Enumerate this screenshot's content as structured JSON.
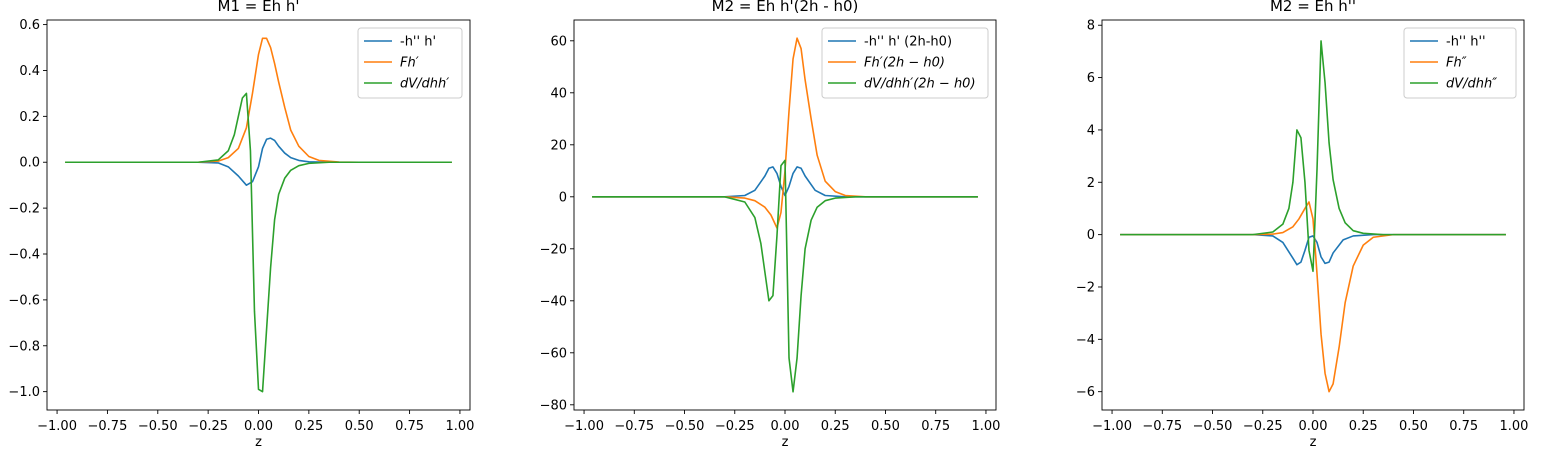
{
  "chart_data": [
    {
      "type": "line",
      "title": "M1 = Eh h'",
      "xlabel": "z",
      "ylabel": "",
      "xlim": [
        -1.05,
        1.05
      ],
      "ylim": [
        -1.08,
        0.62
      ],
      "xticks": [
        -1.0,
        -0.75,
        -0.5,
        -0.25,
        0.0,
        0.25,
        0.5,
        0.75,
        1.0
      ],
      "xtick_labels": [
        "−1.00",
        "−0.75",
        "−0.50",
        "−0.25",
        "0.00",
        "0.25",
        "0.50",
        "0.75",
        "1.00"
      ],
      "yticks": [
        -1.0,
        -0.8,
        -0.6,
        -0.4,
        -0.2,
        0.0,
        0.2,
        0.4,
        0.6
      ],
      "ytick_labels": [
        "−1.0",
        "−0.8",
        "−0.6",
        "−0.4",
        "−0.2",
        "0.0",
        "0.2",
        "0.4",
        "0.6"
      ],
      "legend_position": "top-right",
      "series": [
        {
          "name": "-h'' h'",
          "italic": false,
          "color": "#1f77b4",
          "x": [
            -0.96,
            -0.5,
            -0.3,
            -0.2,
            -0.15,
            -0.1,
            -0.06,
            -0.03,
            0.0,
            0.02,
            0.04,
            0.06,
            0.08,
            0.1,
            0.13,
            0.16,
            0.2,
            0.25,
            0.35,
            0.5,
            0.96
          ],
          "y": [
            0,
            0,
            0,
            -0.003,
            -0.02,
            -0.06,
            -0.1,
            -0.085,
            -0.02,
            0.06,
            0.1,
            0.105,
            0.095,
            0.07,
            0.04,
            0.02,
            0.008,
            0.002,
            0,
            0,
            0
          ]
        },
        {
          "name": "Fh′",
          "italic": true,
          "color": "#ff7f0e",
          "x": [
            -0.96,
            -0.5,
            -0.3,
            -0.2,
            -0.15,
            -0.1,
            -0.06,
            -0.03,
            0.0,
            0.02,
            0.04,
            0.06,
            0.08,
            0.1,
            0.13,
            0.16,
            0.2,
            0.25,
            0.3,
            0.4,
            0.5,
            0.96
          ],
          "y": [
            0,
            0,
            0,
            0.005,
            0.02,
            0.06,
            0.15,
            0.3,
            0.47,
            0.54,
            0.54,
            0.5,
            0.43,
            0.35,
            0.24,
            0.14,
            0.07,
            0.025,
            0.008,
            0.001,
            0,
            0
          ]
        },
        {
          "name": "dV/dhh′",
          "italic": true,
          "color": "#2ca02c",
          "x": [
            -0.96,
            -0.5,
            -0.3,
            -0.2,
            -0.15,
            -0.12,
            -0.1,
            -0.08,
            -0.06,
            -0.04,
            -0.02,
            0.0,
            0.02,
            0.04,
            0.06,
            0.08,
            0.1,
            0.13,
            0.16,
            0.2,
            0.25,
            0.35,
            0.5,
            0.96
          ],
          "y": [
            0,
            0,
            0,
            0.01,
            0.05,
            0.12,
            0.2,
            0.28,
            0.3,
            0.05,
            -0.65,
            -0.99,
            -1.0,
            -0.73,
            -0.46,
            -0.25,
            -0.14,
            -0.07,
            -0.035,
            -0.015,
            -0.005,
            0,
            0,
            0
          ]
        }
      ]
    },
    {
      "type": "line",
      "title": "M2 = Eh h'(2h - h0)",
      "xlabel": "z",
      "ylabel": "",
      "xlim": [
        -1.05,
        1.05
      ],
      "ylim": [
        -82,
        68
      ],
      "xticks": [
        -1.0,
        -0.75,
        -0.5,
        -0.25,
        0.0,
        0.25,
        0.5,
        0.75,
        1.0
      ],
      "xtick_labels": [
        "−1.00",
        "−0.75",
        "−0.50",
        "−0.25",
        "0.00",
        "0.25",
        "0.50",
        "0.75",
        "1.00"
      ],
      "yticks": [
        -80,
        -60,
        -40,
        -20,
        0,
        20,
        40,
        60
      ],
      "ytick_labels": [
        "−80",
        "−60",
        "−40",
        "−20",
        "0",
        "20",
        "40",
        "60"
      ],
      "legend_position": "top-right",
      "series": [
        {
          "name": "-h'' h' (2h-h0)",
          "italic": false,
          "color": "#1f77b4",
          "x": [
            -0.96,
            -0.5,
            -0.3,
            -0.2,
            -0.15,
            -0.1,
            -0.08,
            -0.06,
            -0.04,
            -0.02,
            0.0,
            0.02,
            0.04,
            0.06,
            0.08,
            0.1,
            0.15,
            0.2,
            0.3,
            0.5,
            0.96
          ],
          "y": [
            0,
            0,
            0,
            0.5,
            2.5,
            8,
            11,
            11.5,
            9,
            4,
            0.5,
            4,
            9,
            11.5,
            11,
            8,
            2.5,
            0.5,
            0,
            0,
            0
          ]
        },
        {
          "name": "Fh′(2h − h0)",
          "italic": true,
          "color": "#ff7f0e",
          "x": [
            -0.96,
            -0.5,
            -0.3,
            -0.2,
            -0.15,
            -0.1,
            -0.07,
            -0.04,
            -0.02,
            0.0,
            0.02,
            0.04,
            0.06,
            0.08,
            0.1,
            0.13,
            0.16,
            0.2,
            0.25,
            0.3,
            0.4,
            0.96
          ],
          "y": [
            0,
            0,
            0,
            -0.5,
            -1.5,
            -4,
            -7,
            -12,
            -6,
            10,
            33,
            53,
            61,
            57,
            45,
            30,
            16,
            6,
            2,
            0.5,
            0,
            0
          ]
        },
        {
          "name": "dV/dhh′(2h − h0)",
          "italic": true,
          "color": "#2ca02c",
          "x": [
            -0.96,
            -0.5,
            -0.3,
            -0.2,
            -0.15,
            -0.12,
            -0.1,
            -0.08,
            -0.06,
            -0.04,
            -0.02,
            0.0,
            0.02,
            0.04,
            0.06,
            0.08,
            0.1,
            0.13,
            0.16,
            0.2,
            0.25,
            0.35,
            0.5,
            0.96
          ],
          "y": [
            0,
            0,
            0,
            -2,
            -8,
            -18,
            -29,
            -40,
            -38,
            -15,
            12,
            14,
            -62,
            -75,
            -62,
            -38,
            -20,
            -9,
            -4,
            -1.5,
            -0.5,
            0,
            0,
            0
          ]
        }
      ]
    },
    {
      "type": "line",
      "title": "M2 = Eh h''",
      "xlabel": "z",
      "ylabel": "",
      "xlim": [
        -1.05,
        1.05
      ],
      "ylim": [
        -6.7,
        8.2
      ],
      "xticks": [
        -1.0,
        -0.75,
        -0.5,
        -0.25,
        0.0,
        0.25,
        0.5,
        0.75,
        1.0
      ],
      "xtick_labels": [
        "−1.00",
        "−0.75",
        "−0.50",
        "−0.25",
        "0.00",
        "0.25",
        "0.50",
        "0.75",
        "1.00"
      ],
      "yticks": [
        -6,
        -4,
        -2,
        0,
        2,
        4,
        6,
        8
      ],
      "ytick_labels": [
        "−6",
        "−4",
        "−2",
        "0",
        "2",
        "4",
        "6",
        "8"
      ],
      "legend_position": "top-right",
      "series": [
        {
          "name": "-h'' h''",
          "italic": false,
          "color": "#1f77b4",
          "x": [
            -0.96,
            -0.5,
            -0.3,
            -0.2,
            -0.15,
            -0.1,
            -0.08,
            -0.06,
            -0.04,
            -0.02,
            0.0,
            0.02,
            0.04,
            0.06,
            0.08,
            0.1,
            0.15,
            0.2,
            0.3,
            0.5,
            0.96
          ],
          "y": [
            0,
            0,
            0,
            -0.05,
            -0.3,
            -0.9,
            -1.15,
            -1.05,
            -0.6,
            -0.1,
            -0.05,
            -0.3,
            -0.85,
            -1.1,
            -1.05,
            -0.7,
            -0.2,
            -0.05,
            0,
            0,
            0
          ]
        },
        {
          "name": "Fh″",
          "italic": true,
          "color": "#ff7f0e",
          "x": [
            -0.96,
            -0.5,
            -0.3,
            -0.2,
            -0.15,
            -0.1,
            -0.07,
            -0.04,
            -0.02,
            0.0,
            0.02,
            0.04,
            0.06,
            0.08,
            0.1,
            0.13,
            0.16,
            0.2,
            0.25,
            0.3,
            0.4,
            0.96
          ],
          "y": [
            0,
            0,
            0,
            0.02,
            0.08,
            0.3,
            0.6,
            1.0,
            1.25,
            0.6,
            -1.5,
            -3.8,
            -5.3,
            -6.0,
            -5.7,
            -4.3,
            -2.6,
            -1.2,
            -0.4,
            -0.1,
            0,
            0
          ]
        },
        {
          "name": "dV/dhh″",
          "italic": true,
          "color": "#2ca02c",
          "x": [
            -0.96,
            -0.5,
            -0.3,
            -0.2,
            -0.15,
            -0.12,
            -0.1,
            -0.08,
            -0.06,
            -0.04,
            -0.02,
            0.0,
            0.02,
            0.04,
            0.06,
            0.08,
            0.1,
            0.13,
            0.16,
            0.2,
            0.25,
            0.35,
            0.5,
            0.96
          ],
          "y": [
            0,
            0,
            0,
            0.1,
            0.4,
            1.0,
            2.0,
            4.0,
            3.7,
            2.0,
            -0.6,
            -1.4,
            2.5,
            7.4,
            5.8,
            3.5,
            2.1,
            1.0,
            0.45,
            0.15,
            0.05,
            0,
            0,
            0
          ]
        }
      ]
    }
  ]
}
